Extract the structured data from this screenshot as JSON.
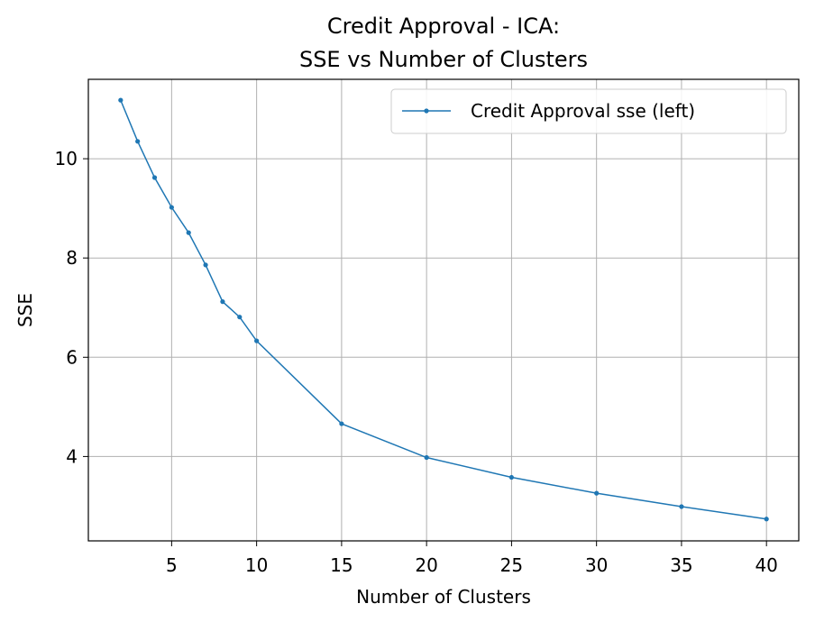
{
  "chart_data": {
    "type": "line",
    "title": "Credit Approval - ICA:",
    "subtitle": "SSE vs Number of Clusters",
    "xlabel": "Number of Clusters",
    "ylabel": "SSE",
    "xlim": [
      0.1,
      41.9
    ],
    "ylim": [
      2.3,
      11.6
    ],
    "xticks": [
      5,
      10,
      15,
      20,
      25,
      30,
      35,
      40
    ],
    "yticks": [
      4,
      6,
      8,
      10
    ],
    "grid": true,
    "legend_position": "top-right",
    "color": "#1f77b4",
    "series": [
      {
        "name": "Credit Approval sse (left)",
        "x": [
          2,
          3,
          4,
          5,
          6,
          7,
          8,
          9,
          10,
          15,
          20,
          25,
          30,
          35,
          40
        ],
        "y": [
          11.18,
          10.35,
          9.62,
          9.02,
          8.51,
          7.86,
          7.12,
          6.81,
          6.33,
          4.66,
          3.98,
          3.58,
          3.26,
          2.99,
          2.74
        ]
      }
    ]
  }
}
